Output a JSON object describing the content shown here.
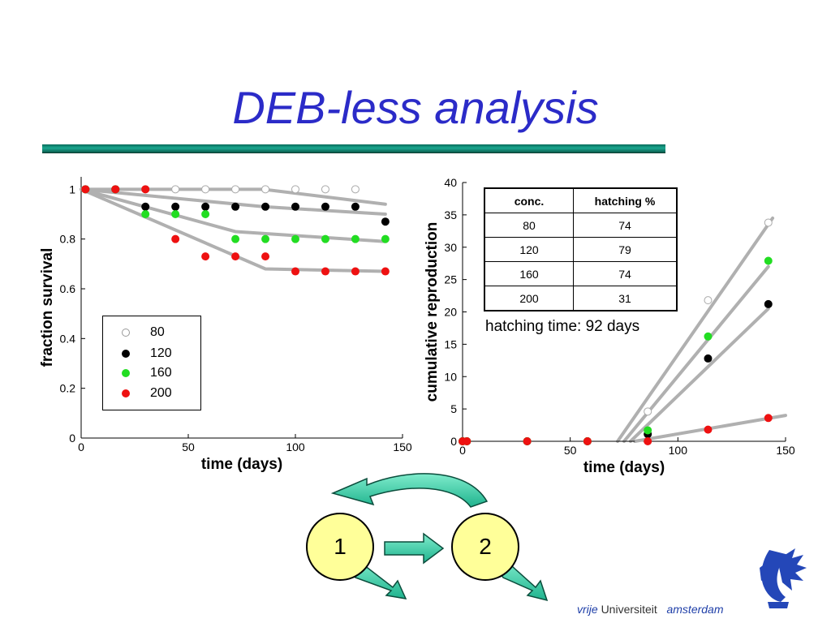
{
  "title": "DEB-less analysis",
  "colors": {
    "title": "#2b2bc8",
    "rule": "#1aa890",
    "fit": "#b0b0b0",
    "c80": "#ffffff",
    "c120": "#000000",
    "c160": "#22dd22",
    "c200": "#ee1111",
    "node_fill": "#ffff99",
    "arrow": "#33ccaa"
  },
  "chart_data": [
    {
      "type": "scatter",
      "title": "",
      "xlabel": "time (days)",
      "ylabel": "fraction survival",
      "xlim": [
        0,
        150
      ],
      "ylim": [
        0,
        1.05
      ],
      "xticks": [
        "0",
        "50",
        "100",
        "150"
      ],
      "yticks": [
        "0",
        "0.2",
        "0.4",
        "0.6",
        "0.8",
        "1"
      ],
      "legend_position": "lower-left",
      "legend": [
        "80",
        "120",
        "160",
        "200"
      ],
      "series": [
        {
          "name": "80",
          "x": [
            2,
            16,
            30,
            44,
            58,
            72,
            86,
            100,
            114,
            128
          ],
          "y": [
            1,
            1,
            1,
            1,
            1,
            1,
            1,
            1,
            1,
            1
          ]
        },
        {
          "name": "120",
          "x": [
            2,
            16,
            30,
            44,
            58,
            72,
            86,
            100,
            114,
            128,
            142
          ],
          "y": [
            1,
            1,
            0.93,
            0.93,
            0.93,
            0.93,
            0.93,
            0.93,
            0.93,
            0.93,
            0.87
          ]
        },
        {
          "name": "160",
          "x": [
            2,
            16,
            30,
            44,
            58,
            72,
            86,
            100,
            114,
            128,
            142
          ],
          "y": [
            1,
            1,
            0.9,
            0.9,
            0.9,
            0.8,
            0.8,
            0.8,
            0.8,
            0.8,
            0.8
          ]
        },
        {
          "name": "200",
          "x": [
            2,
            16,
            30,
            44,
            58,
            72,
            86,
            100,
            114,
            128,
            142
          ],
          "y": [
            1,
            1,
            1,
            0.8,
            0.73,
            0.73,
            0.73,
            0.67,
            0.67,
            0.67,
            0.67
          ]
        }
      ],
      "fits": [
        {
          "x": [
            0,
            85,
            142
          ],
          "y": [
            1,
            1,
            0.94
          ]
        },
        {
          "x": [
            0,
            85,
            142
          ],
          "y": [
            1,
            0.93,
            0.9
          ]
        },
        {
          "x": [
            0,
            72,
            142
          ],
          "y": [
            1,
            0.83,
            0.79
          ]
        },
        {
          "x": [
            0,
            86,
            142
          ],
          "y": [
            1,
            0.68,
            0.67
          ]
        }
      ]
    },
    {
      "type": "scatter",
      "title": "",
      "xlabel": "time (days)",
      "ylabel": "cumulative reproduction",
      "xlim": [
        0,
        150
      ],
      "ylim": [
        0,
        40
      ],
      "xticks": [
        "0",
        "50",
        "100",
        "150"
      ],
      "yticks": [
        "0",
        "5",
        "10",
        "15",
        "20",
        "25",
        "30",
        "35",
        "40"
      ],
      "series": [
        {
          "name": "80",
          "x": [
            0,
            2,
            30,
            58,
            86,
            114,
            142
          ],
          "y": [
            0,
            0,
            0,
            0,
            4.6,
            21.8,
            33.8
          ]
        },
        {
          "name": "120",
          "x": [
            0,
            2,
            30,
            58,
            86,
            114,
            142
          ],
          "y": [
            0,
            0,
            0,
            0,
            1.1,
            12.8,
            21.2
          ]
        },
        {
          "name": "160",
          "x": [
            0,
            2,
            30,
            58,
            86,
            114,
            142
          ],
          "y": [
            0,
            0,
            0,
            0,
            1.7,
            16.2,
            27.9
          ]
        },
        {
          "name": "200",
          "x": [
            0,
            2,
            30,
            58,
            86,
            114,
            142
          ],
          "y": [
            0,
            0,
            0,
            0,
            0,
            1.8,
            3.6
          ]
        }
      ],
      "fits": [
        {
          "x": [
            72,
            144
          ],
          "y": [
            0,
            34.5
          ]
        },
        {
          "x": [
            75,
            142
          ],
          "y": [
            0,
            27
          ]
        },
        {
          "x": [
            78,
            142
          ],
          "y": [
            0,
            20.5
          ]
        },
        {
          "x": [
            80,
            150
          ],
          "y": [
            0,
            4
          ]
        }
      ]
    }
  ],
  "table": {
    "headers": [
      "conc.",
      "hatching %"
    ],
    "rows": [
      [
        "80",
        "74"
      ],
      [
        "120",
        "79"
      ],
      [
        "160",
        "74"
      ],
      [
        "200",
        "31"
      ]
    ]
  },
  "hatching_note": "hatching time: 92 days",
  "diagram": {
    "node1": "1",
    "node2": "2"
  },
  "footer": {
    "vrije": "vrije",
    "universiteit": "Universiteit",
    "amsterdam": "amsterdam"
  }
}
